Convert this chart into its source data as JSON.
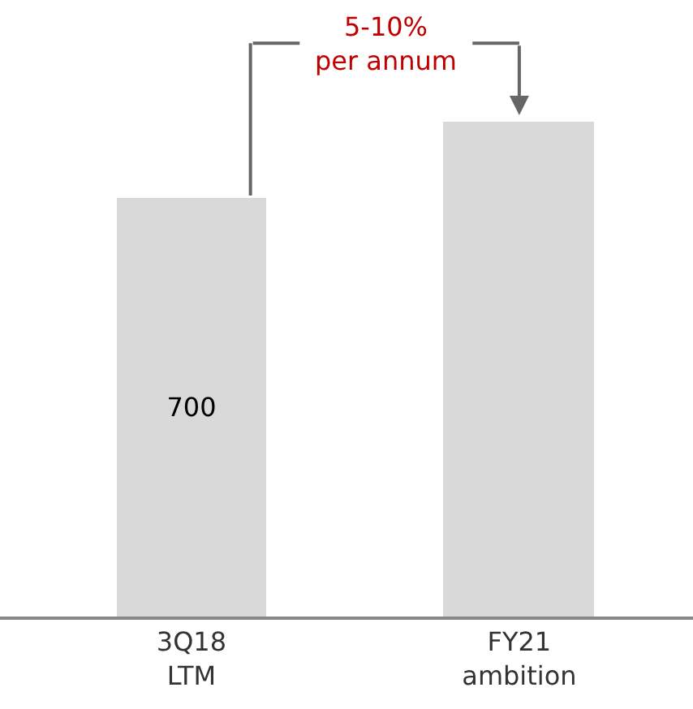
{
  "chart_data": {
    "type": "bar",
    "categories": [
      "3Q18\nLTM",
      "FY21\nambition"
    ],
    "values": [
      700,
      828
    ],
    "value_labels": [
      "700",
      null
    ],
    "color": "#d9d9d9",
    "annotations": [
      "5-10%\nper annum"
    ]
  }
}
